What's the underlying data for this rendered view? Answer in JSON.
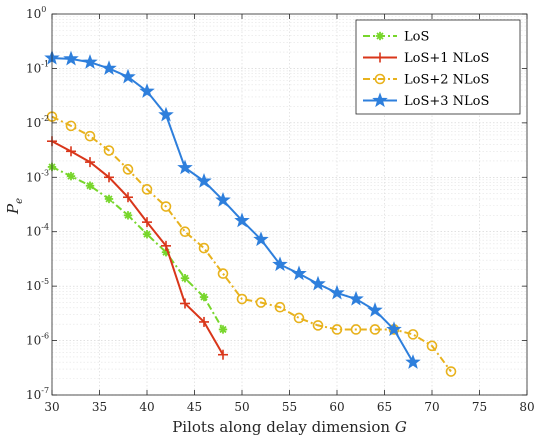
{
  "chart_data": {
    "type": "line",
    "xlabel": "Pilots along delay dimension G",
    "ylabel": "P_e",
    "xlim": [
      30,
      80
    ],
    "ylim_log10": [
      -7,
      0
    ],
    "yscale": "log",
    "grid": true,
    "legend_position": "top-right",
    "x_ticks": [
      "30",
      "35",
      "40",
      "45",
      "50",
      "55",
      "60",
      "65",
      "70",
      "75",
      "80"
    ],
    "y_ticks": [
      {
        "base": "10",
        "exp": "0"
      },
      {
        "base": "10",
        "exp": "-1"
      },
      {
        "base": "10",
        "exp": "-2"
      },
      {
        "base": "10",
        "exp": "-3"
      },
      {
        "base": "10",
        "exp": "-4"
      },
      {
        "base": "10",
        "exp": "-5"
      },
      {
        "base": "10",
        "exp": "-6"
      },
      {
        "base": "10",
        "exp": "-7"
      }
    ],
    "series": [
      {
        "name": "LoS",
        "color": "#77d62b",
        "dash": "dashdot",
        "marker": "asterisk",
        "x": [
          30,
          32,
          34,
          36,
          38,
          40,
          42,
          44,
          46,
          48
        ],
        "y": [
          0.00155,
          0.00105,
          0.0007,
          0.0004,
          0.0002,
          9e-05,
          4.2e-05,
          1.4e-05,
          6.3e-06,
          1.6e-06
        ]
      },
      {
        "name": "LoS+1 NLoS",
        "color": "#d9361a",
        "dash": "solid",
        "marker": "plus",
        "x": [
          30,
          32,
          34,
          36,
          38,
          40,
          42,
          44,
          46,
          48
        ],
        "y": [
          0.0046,
          0.003,
          0.0019,
          0.001,
          0.00043,
          0.00015,
          5.5e-05,
          4.8e-06,
          2.2e-06,
          5.5e-07
        ]
      },
      {
        "name": "LoS+2 NLoS",
        "color": "#e8b21d",
        "dash": "dashdot",
        "marker": "circle",
        "x": [
          30,
          32,
          34,
          36,
          38,
          40,
          42,
          44,
          46,
          48,
          50,
          52,
          54,
          56,
          58,
          60,
          62,
          64,
          66,
          68,
          70,
          72
        ],
        "y": [
          0.013,
          0.0088,
          0.0057,
          0.0031,
          0.0014,
          0.0006,
          0.00029,
          0.0001,
          5e-05,
          1.7e-05,
          5.8e-06,
          5e-06,
          4.1e-06,
          2.6e-06,
          1.9e-06,
          1.6e-06,
          1.6e-06,
          1.6e-06,
          1.6e-06,
          1.3e-06,
          8e-07,
          2.7e-07
        ]
      },
      {
        "name": "LoS+3 NLoS",
        "color": "#2e7fdc",
        "dash": "solid",
        "marker": "star",
        "x": [
          30,
          32,
          34,
          36,
          38,
          40,
          42,
          44,
          46,
          48,
          50,
          52,
          54,
          56,
          58,
          60,
          62,
          64,
          66,
          68
        ],
        "y": [
          0.155,
          0.15,
          0.13,
          0.1,
          0.07,
          0.038,
          0.014,
          0.0015,
          0.00085,
          0.00038,
          0.00016,
          7.2e-05,
          2.5e-05,
          1.7e-05,
          1.1e-05,
          7.5e-06,
          5.8e-06,
          3.6e-06,
          1.6e-06,
          4e-07
        ]
      }
    ]
  }
}
